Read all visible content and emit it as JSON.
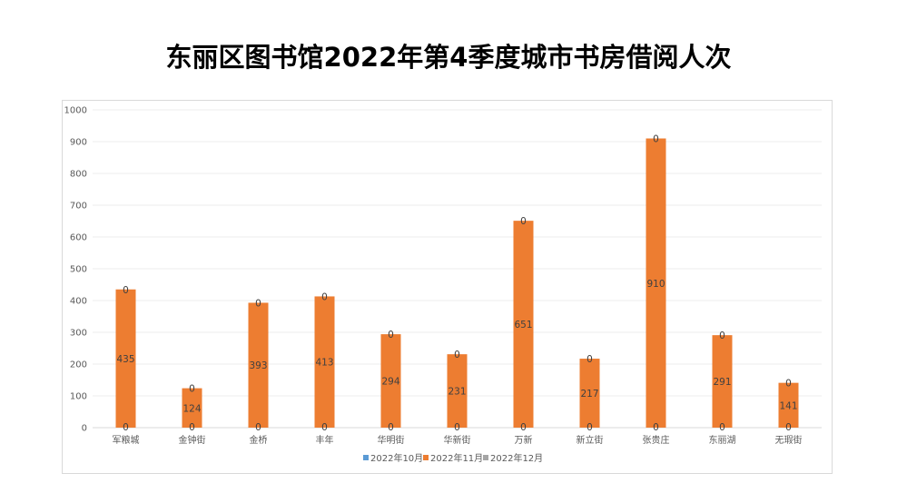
{
  "chart_data": {
    "type": "bar",
    "title": "东丽区图书馆2022年第4季度城市书房借阅人次",
    "categories": [
      "军粮城",
      "金钟街",
      "金桥",
      "丰年",
      "华明街",
      "华新街",
      "万新",
      "新立街",
      "张贵庄",
      "东丽湖",
      "无瑕街"
    ],
    "series": [
      {
        "name": "2022年10月",
        "color": "#5b9bd5",
        "values": [
          0,
          0,
          0,
          0,
          0,
          0,
          0,
          0,
          0,
          0,
          0
        ]
      },
      {
        "name": "2022年11月",
        "color": "#ed7d31",
        "values": [
          435,
          124,
          393,
          413,
          294,
          231,
          651,
          217,
          910,
          291,
          141
        ]
      },
      {
        "name": "2022年12月",
        "color": "#a5a5a5",
        "values": [
          0,
          0,
          0,
          0,
          0,
          0,
          0,
          0,
          0,
          0,
          0
        ]
      }
    ],
    "ylim": [
      0,
      1000
    ],
    "yticks": [
      0,
      100,
      200,
      300,
      400,
      500,
      600,
      700,
      800,
      900,
      1000
    ],
    "grid": true,
    "legend": "bottom",
    "xlabel": "",
    "ylabel": ""
  }
}
